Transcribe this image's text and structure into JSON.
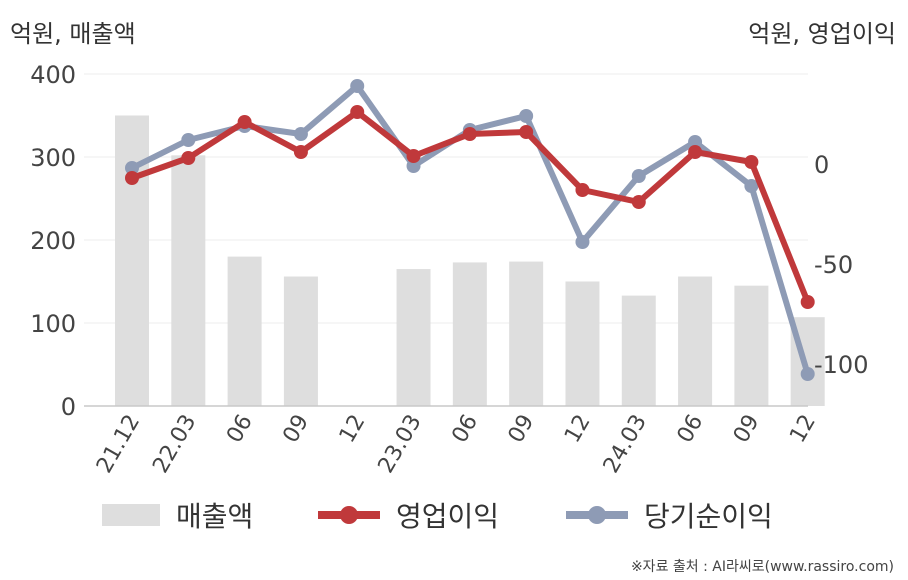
{
  "units": {
    "left": "억원, 매출액",
    "right": "억원, 영업이익"
  },
  "source": "※자료 출처 : AI라씨로(www.rassiro.com)",
  "colors": {
    "revenue": "#dedede",
    "operating_profit": "#c0393b",
    "net_income": "#8e9bb5"
  },
  "legend": [
    {
      "label": "매출액",
      "type": "bar"
    },
    {
      "label": "영업이익",
      "type": "line"
    },
    {
      "label": "당기순이익",
      "type": "line"
    }
  ],
  "chart_data": {
    "type": "bar",
    "categories": [
      "21.12",
      "22.03",
      "06",
      "09",
      "12",
      "23.03",
      "06",
      "09",
      "12",
      "24.03",
      "06",
      "09",
      "12"
    ],
    "left_axis": {
      "ylim": [
        0,
        400
      ],
      "ticks": [
        0,
        100,
        200,
        300,
        400
      ]
    },
    "right_axis": {
      "ylim": [
        -120,
        45
      ],
      "ticks": [
        0,
        -50,
        -100
      ]
    },
    "series": [
      {
        "name": "매출액",
        "type": "bar",
        "axis": "left",
        "values": [
          350,
          302,
          180,
          156,
          null,
          165,
          173,
          174,
          150,
          133,
          156,
          145,
          107
        ]
      },
      {
        "name": "영업이익",
        "type": "line",
        "axis": "right",
        "values": [
          -7,
          3,
          21,
          6,
          26,
          4,
          15,
          16,
          -13,
          -19,
          6,
          1,
          -69
        ]
      },
      {
        "name": "당기순이익",
        "type": "line",
        "axis": "right",
        "values": [
          -2,
          12,
          19,
          15,
          39,
          -1,
          17,
          24,
          -39,
          -6,
          11,
          -11,
          -105
        ]
      }
    ],
    "grid": true
  }
}
